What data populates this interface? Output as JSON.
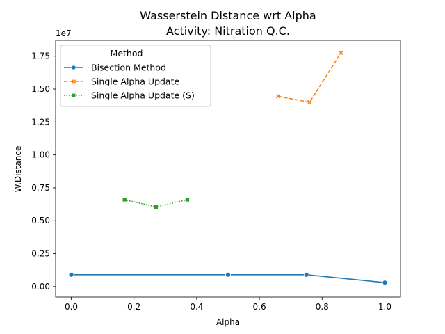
{
  "chart_data": {
    "type": "line",
    "title": "Wasserstein Distance wrt Alpha",
    "subtitle": "Activity: Nitration Q.C.",
    "xlabel": "Alpha",
    "ylabel": "W.Distance",
    "y_offset_label": "1e7",
    "xlim": [
      -0.05,
      1.05
    ],
    "ylim": [
      -0.08,
      1.87
    ],
    "y_scale_factor": 10000000,
    "x_ticks": [
      0.0,
      0.2,
      0.4,
      0.6,
      0.8,
      1.0
    ],
    "x_tick_labels": [
      "0.0",
      "0.2",
      "0.4",
      "0.6",
      "0.8",
      "1.0"
    ],
    "y_ticks": [
      0.0,
      0.25,
      0.5,
      0.75,
      1.0,
      1.25,
      1.5,
      1.75
    ],
    "y_tick_labels": [
      "0.00",
      "0.25",
      "0.50",
      "0.75",
      "1.00",
      "1.25",
      "1.50",
      "1.75"
    ],
    "grid": false,
    "legend": {
      "title": "Method",
      "placement": "top-left"
    },
    "series": [
      {
        "name": "Bisection Method",
        "color": "#1f77b4",
        "linestyle": "solid",
        "marker": "circle",
        "x": [
          0.0,
          0.5,
          0.75,
          1.0
        ],
        "y": [
          0.09,
          0.09,
          0.09,
          0.03
        ]
      },
      {
        "name": "Single Alpha Update",
        "color": "#ff7f0e",
        "linestyle": "dashed",
        "marker": "x",
        "x": [
          0.66,
          0.76,
          0.86
        ],
        "y": [
          1.445,
          1.4,
          1.775
        ]
      },
      {
        "name": "Single Alpha Update (S)",
        "color": "#2ca02c",
        "linestyle": "dotted",
        "marker": "square",
        "x": [
          0.17,
          0.27,
          0.37
        ],
        "y": [
          0.66,
          0.605,
          0.66
        ]
      }
    ]
  }
}
